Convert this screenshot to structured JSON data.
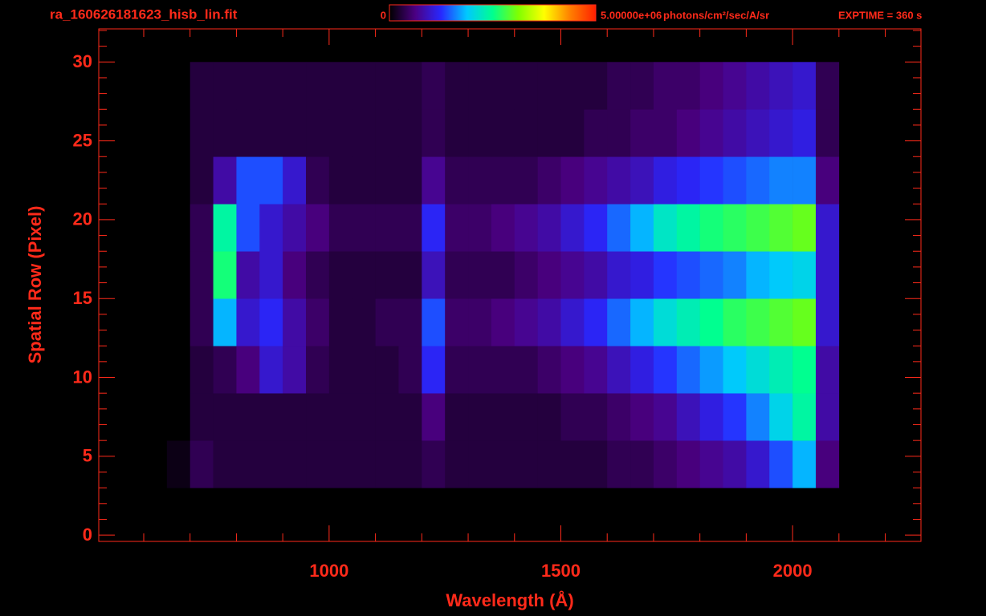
{
  "chart_data": {
    "type": "heatmap",
    "title": "ra_160626181623_hisb_lin.fit",
    "xlabel": "Wavelength (Å)",
    "ylabel": "Spatial Row (Pixel)",
    "colorbar_label": "photons/cm²/sec/A/sr",
    "annotation": "EXPTIME = 360 s",
    "xbins": [
      650,
      700,
      750,
      800,
      850,
      900,
      950,
      1000,
      1050,
      1100,
      1150,
      1200,
      1250,
      1300,
      1350,
      1400,
      1450,
      1500,
      1550,
      1600,
      1650,
      1700,
      1750,
      1800,
      1850,
      1900,
      1950,
      2000,
      2050,
      2100
    ],
    "ybins": [
      3,
      6,
      9,
      12,
      15,
      18,
      21,
      24,
      27,
      30
    ],
    "values": [
      [
        100000.0,
        400000.0,
        300000.0,
        300000.0,
        300000.0,
        300000.0,
        300000.0,
        300000.0,
        300000.0,
        300000.0,
        300000.0,
        400000.0,
        300000.0,
        300000.0,
        300000.0,
        300000.0,
        300000.0,
        300000.0,
        300000.0,
        400000.0,
        400000.0,
        500000.0,
        600000.0,
        700000.0,
        800000.0,
        1000000.0,
        1400000.0,
        1800000.0,
        600000.0
      ],
      [
        0,
        300000.0,
        300000.0,
        300000.0,
        300000.0,
        300000.0,
        300000.0,
        300000.0,
        300000.0,
        300000.0,
        300000.0,
        600000.0,
        300000.0,
        300000.0,
        300000.0,
        300000.0,
        300000.0,
        400000.0,
        400000.0,
        500000.0,
        600000.0,
        700000.0,
        900000.0,
        1100000.0,
        1300000.0,
        1600000.0,
        2000000.0,
        2400000.0,
        800000.0
      ],
      [
        0,
        300000.0,
        400000.0,
        600000.0,
        1000000.0,
        800000.0,
        400000.0,
        300000.0,
        300000.0,
        300000.0,
        400000.0,
        1200000.0,
        400000.0,
        400000.0,
        400000.0,
        400000.0,
        500000.0,
        600000.0,
        700000.0,
        900000.0,
        1100000.0,
        1300000.0,
        1500000.0,
        1700000.0,
        1900000.0,
        2100000.0,
        2300000.0,
        2500000.0,
        800000.0
      ],
      [
        0,
        400000.0,
        1800000.0,
        1000000.0,
        1200000.0,
        800000.0,
        500000.0,
        300000.0,
        300000.0,
        400000.0,
        400000.0,
        1400000.0,
        500000.0,
        500000.0,
        600000.0,
        700000.0,
        800000.0,
        1000000.0,
        1200000.0,
        1500000.0,
        1800000.0,
        2100000.0,
        2300000.0,
        2500000.0,
        2700000.0,
        2800000.0,
        2900000.0,
        3000000.0,
        1000000.0
      ],
      [
        0,
        400000.0,
        2600000.0,
        800000.0,
        1000000.0,
        600000.0,
        400000.0,
        300000.0,
        300000.0,
        300000.0,
        300000.0,
        900000.0,
        400000.0,
        400000.0,
        400000.0,
        500000.0,
        600000.0,
        700000.0,
        800000.0,
        1000000.0,
        1100000.0,
        1300000.0,
        1400000.0,
        1500000.0,
        1600000.0,
        1800000.0,
        1900000.0,
        2000000.0,
        1000000.0
      ],
      [
        0,
        400000.0,
        2400000.0,
        1400000.0,
        1000000.0,
        800000.0,
        600000.0,
        400000.0,
        400000.0,
        400000.0,
        400000.0,
        1200000.0,
        500000.0,
        500000.0,
        600000.0,
        700000.0,
        800000.0,
        1000000.0,
        1200000.0,
        1500000.0,
        1800000.0,
        2200000.0,
        2400000.0,
        2600000.0,
        2700000.0,
        2800000.0,
        2900000.0,
        3000000.0,
        1000000.0
      ],
      [
        0,
        300000.0,
        800000.0,
        1400000.0,
        1400000.0,
        1000000.0,
        400000.0,
        300000.0,
        300000.0,
        300000.0,
        300000.0,
        700000.0,
        400000.0,
        400000.0,
        400000.0,
        400000.0,
        500000.0,
        600000.0,
        700000.0,
        800000.0,
        900000.0,
        1100000.0,
        1200000.0,
        1300000.0,
        1400000.0,
        1500000.0,
        1600000.0,
        1600000.0,
        600000.0
      ],
      [
        0,
        300000.0,
        300000.0,
        300000.0,
        300000.0,
        300000.0,
        300000.0,
        300000.0,
        300000.0,
        300000.0,
        300000.0,
        400000.0,
        300000.0,
        300000.0,
        300000.0,
        300000.0,
        300000.0,
        300000.0,
        400000.0,
        400000.0,
        500000.0,
        500000.0,
        600000.0,
        700000.0,
        800000.0,
        900000.0,
        1000000.0,
        1100000.0,
        400000.0
      ],
      [
        0,
        300000.0,
        300000.0,
        300000.0,
        300000.0,
        300000.0,
        300000.0,
        300000.0,
        300000.0,
        300000.0,
        300000.0,
        400000.0,
        300000.0,
        300000.0,
        300000.0,
        300000.0,
        300000.0,
        300000.0,
        300000.0,
        400000.0,
        400000.0,
        500000.0,
        500000.0,
        600000.0,
        700000.0,
        800000.0,
        900000.0,
        1000000.0,
        400000.0
      ]
    ],
    "xlim": [
      503,
      2277
    ],
    "ylim": [
      -0.4,
      32.1
    ],
    "xticks": [
      1000,
      1500,
      2000
    ],
    "yticks": [
      0,
      5,
      10,
      15,
      20,
      25,
      30
    ],
    "xminorticks": [
      600,
      700,
      800,
      900,
      1100,
      1200,
      1300,
      1400,
      1600,
      1700,
      1800,
      1900,
      2100,
      2200
    ],
    "yminorticks": [
      1,
      2,
      3,
      4,
      6,
      7,
      8,
      9,
      11,
      12,
      13,
      14,
      16,
      17,
      18,
      19,
      21,
      22,
      23,
      24,
      26,
      27,
      28,
      29,
      31,
      32
    ],
    "zlim": [
      0,
      5000000
    ],
    "zticks": [
      0,
      {
        "value": 5000000,
        "label": "5.00000e+06"
      }
    ],
    "colormap": [
      "#000000",
      "#4b0082",
      "#2828ff",
      "#00c8ff",
      "#00ff90",
      "#80ff00",
      "#ffff00",
      "#ff8000",
      "#ff2000"
    ],
    "axis_color": "#ff2a1a"
  }
}
